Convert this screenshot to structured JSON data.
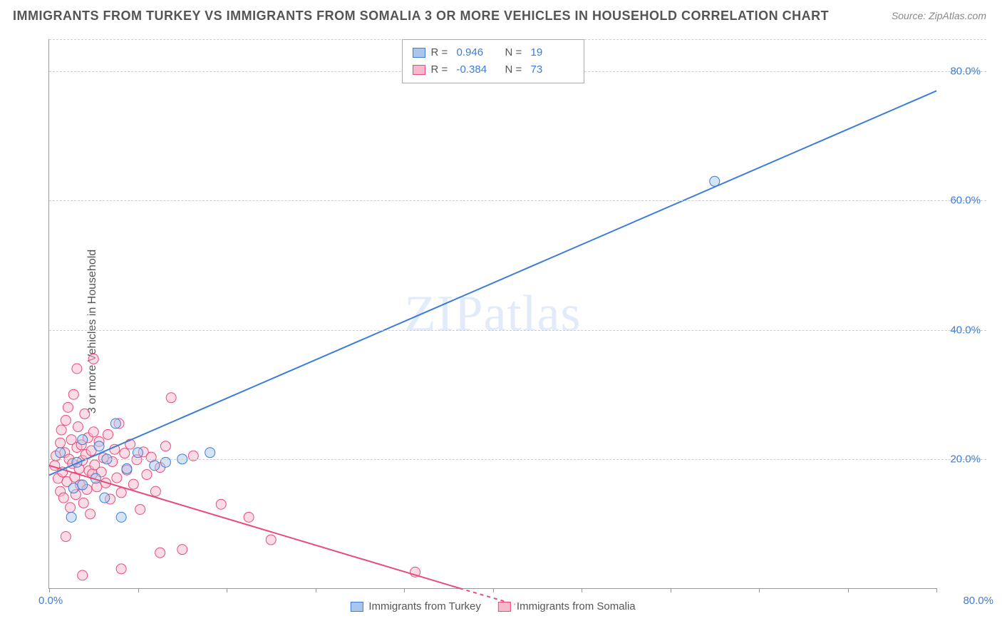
{
  "title": "IMMIGRANTS FROM TURKEY VS IMMIGRANTS FROM SOMALIA 3 OR MORE VEHICLES IN HOUSEHOLD CORRELATION CHART",
  "source": "Source: ZipAtlas.com",
  "watermark": "ZIPatlas",
  "yaxis_label": "3 or more Vehicles in Household",
  "chart": {
    "type": "scatter-correlation",
    "background_color": "#ffffff",
    "grid_color": "#cccccc",
    "axis_color": "#999999",
    "tick_label_color": "#3b7dd8",
    "axis_label_color": "#555555",
    "title_color": "#555555",
    "xlim": [
      0,
      80
    ],
    "ylim": [
      0,
      85
    ],
    "yticks": [
      20,
      40,
      60,
      80
    ],
    "ytick_labels": [
      "20.0%",
      "40.0%",
      "60.0%",
      "80.0%"
    ],
    "xtick_min_label": "0.0%",
    "xtick_max_label": "80.0%",
    "xtick_positions": [
      0,
      8,
      16,
      24,
      32,
      40,
      48,
      56,
      64,
      72,
      80
    ],
    "marker_radius": 7,
    "marker_opacity": 0.5,
    "line_width": 2,
    "series": [
      {
        "name": "Immigrants from Turkey",
        "color": "#3b7dd8",
        "fill": "#a9c7ee",
        "R": "0.946",
        "N": "19",
        "regression": {
          "x1": 0,
          "y1": 17.5,
          "x2": 80,
          "y2": 77
        },
        "points": [
          [
            1,
            21
          ],
          [
            2,
            11
          ],
          [
            2.2,
            15.5
          ],
          [
            2.5,
            19.5
          ],
          [
            3,
            23
          ],
          [
            3,
            16
          ],
          [
            4.2,
            17
          ],
          [
            4.5,
            22
          ],
          [
            5,
            14
          ],
          [
            5.2,
            20
          ],
          [
            6,
            25.5
          ],
          [
            6.5,
            11
          ],
          [
            7,
            18.5
          ],
          [
            8,
            21
          ],
          [
            9.5,
            19
          ],
          [
            10.5,
            19.5
          ],
          [
            12,
            20
          ],
          [
            14.5,
            21
          ],
          [
            60,
            63
          ]
        ]
      },
      {
        "name": "Immigrants from Somalia",
        "color": "#e84c7a",
        "fill": "#f7b8cb",
        "R": "-0.384",
        "N": "73",
        "regression": {
          "x1": 0,
          "y1": 19,
          "x2": 37,
          "y2": 0
        },
        "regression_dash_extend": {
          "x1": 37,
          "y1": 0,
          "x2": 42,
          "y2": -2.5
        },
        "points": [
          [
            0.5,
            19
          ],
          [
            0.6,
            20.5
          ],
          [
            0.8,
            17
          ],
          [
            1,
            22.5
          ],
          [
            1,
            15
          ],
          [
            1.1,
            24.5
          ],
          [
            1.2,
            18
          ],
          [
            1.3,
            14
          ],
          [
            1.4,
            21
          ],
          [
            1.5,
            26
          ],
          [
            1.6,
            16.5
          ],
          [
            1.7,
            28
          ],
          [
            1.8,
            20
          ],
          [
            1.9,
            12.5
          ],
          [
            2,
            23
          ],
          [
            2.1,
            19.3
          ],
          [
            2.2,
            30
          ],
          [
            2.3,
            17.2
          ],
          [
            2.4,
            14.5
          ],
          [
            2.5,
            21.8
          ],
          [
            2.6,
            25
          ],
          [
            2.7,
            18.5
          ],
          [
            2.8,
            16
          ],
          [
            2.9,
            22.2
          ],
          [
            3,
            19.8
          ],
          [
            3.1,
            13.2
          ],
          [
            3.2,
            27
          ],
          [
            3.3,
            20.7
          ],
          [
            3.4,
            15.3
          ],
          [
            3.5,
            23.3
          ],
          [
            3.6,
            18.2
          ],
          [
            3.7,
            11.5
          ],
          [
            3.8,
            21.3
          ],
          [
            3.9,
            17.7
          ],
          [
            4,
            24.2
          ],
          [
            4.1,
            19.1
          ],
          [
            4.3,
            15.7
          ],
          [
            4.5,
            22.7
          ],
          [
            4.7,
            18
          ],
          [
            4.9,
            20.2
          ],
          [
            5.1,
            16.3
          ],
          [
            5.3,
            23.8
          ],
          [
            5.5,
            13.8
          ],
          [
            5.7,
            19.6
          ],
          [
            5.9,
            21.5
          ],
          [
            6.1,
            17.1
          ],
          [
            6.3,
            25.5
          ],
          [
            6.5,
            14.8
          ],
          [
            6.8,
            20.9
          ],
          [
            7,
            18.3
          ],
          [
            7.3,
            22.3
          ],
          [
            7.6,
            16.1
          ],
          [
            7.9,
            19.9
          ],
          [
            8.2,
            12.2
          ],
          [
            8.5,
            21.1
          ],
          [
            8.8,
            17.6
          ],
          [
            9.2,
            20.3
          ],
          [
            9.6,
            15
          ],
          [
            10,
            18.7
          ],
          [
            10.5,
            22
          ],
          [
            11,
            29.5
          ],
          [
            4,
            35.5
          ],
          [
            2.5,
            34
          ],
          [
            3,
            2
          ],
          [
            6.5,
            3
          ],
          [
            10,
            5.5
          ],
          [
            12,
            6
          ],
          [
            13,
            20.5
          ],
          [
            15.5,
            13
          ],
          [
            18,
            11
          ],
          [
            20,
            7.5
          ],
          [
            33,
            2.5
          ],
          [
            1.5,
            8
          ]
        ]
      }
    ]
  },
  "legend_bottom": [
    {
      "label": "Immigrants from Turkey",
      "fill": "#a9c7ee",
      "border": "#3b7dd8"
    },
    {
      "label": "Immigrants from Somalia",
      "fill": "#f7b8cb",
      "border": "#e84c7a"
    }
  ]
}
